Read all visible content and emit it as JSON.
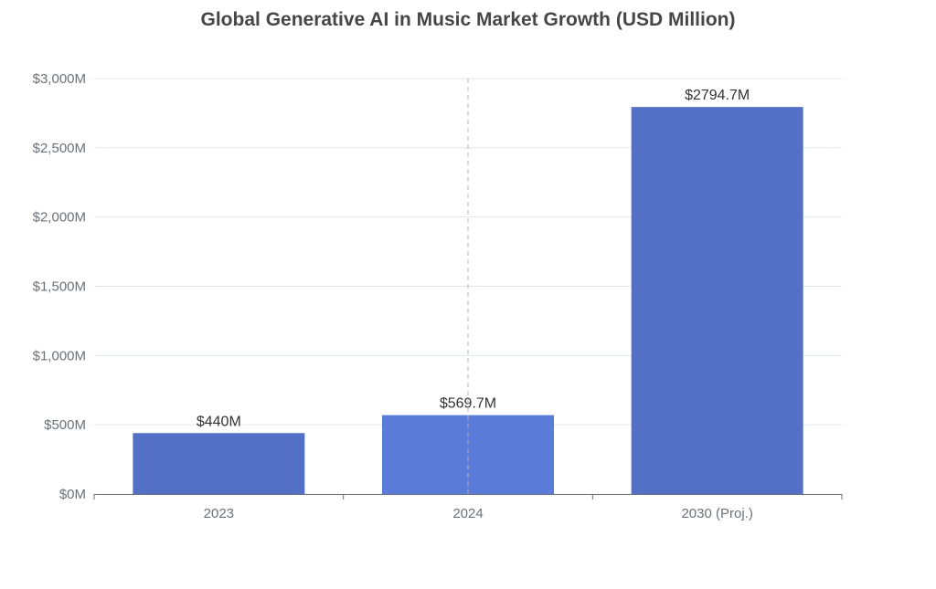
{
  "chart_data": {
    "type": "bar",
    "title": "Global Generative AI in Music Market Growth (USD Million)",
    "categories": [
      "2023",
      "2024",
      "2030 (Proj.)"
    ],
    "values": [
      440,
      569.7,
      2794.7
    ],
    "data_labels": [
      "$440M",
      "$569.7M",
      "$2794.7M"
    ],
    "ylim": [
      0,
      3000
    ],
    "yticks": [
      0,
      500,
      1000,
      1500,
      2000,
      2500,
      3000
    ],
    "ytick_labels": [
      "$0M",
      "$500M",
      "$1,000M",
      "$1,500M",
      "$2,000M",
      "$2,500M",
      "$3,000M"
    ],
    "grid": true,
    "highlighted_category": "2024",
    "colors": {
      "bar": "#5470c6",
      "bar_highlight": "#5b7bd9",
      "grid": "#e0e6f1",
      "axis": "#6e7079",
      "label": "#333333",
      "title": "#464646"
    }
  }
}
